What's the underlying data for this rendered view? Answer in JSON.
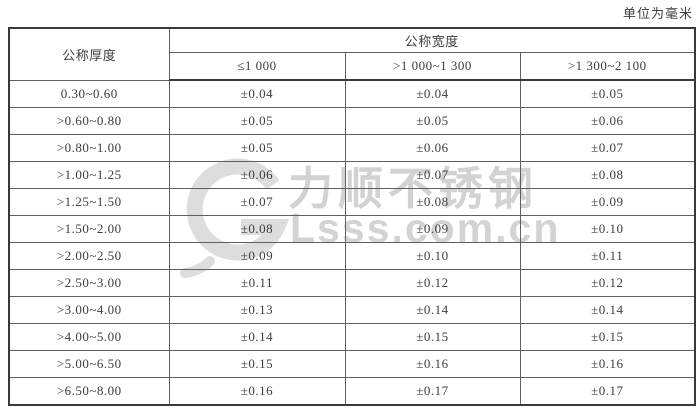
{
  "page": {
    "unit_note": "单位为毫米"
  },
  "table": {
    "thickness_header": "公称厚度",
    "width_group_header": "公称宽度",
    "width_col_headers": [
      "≤1 000",
      ">1 000~1 300",
      ">1 300~2 100"
    ],
    "rows": [
      {
        "thickness": "0.30~0.60",
        "tolerances": [
          "±0.04",
          "±0.04",
          "±0.05"
        ]
      },
      {
        "thickness": ">0.60~0.80",
        "tolerances": [
          "±0.05",
          "±0.05",
          "±0.06"
        ]
      },
      {
        "thickness": ">0.80~1.00",
        "tolerances": [
          "±0.05",
          "±0.06",
          "±0.07"
        ]
      },
      {
        "thickness": ">1.00~1.25",
        "tolerances": [
          "±0.06",
          "±0.07",
          "±0.08"
        ]
      },
      {
        "thickness": ">1.25~1.50",
        "tolerances": [
          "±0.07",
          "±0.08",
          "±0.09"
        ]
      },
      {
        "thickness": ">1.50~2.00",
        "tolerances": [
          "±0.08",
          "±0.09",
          "±0.10"
        ]
      },
      {
        "thickness": ">2.00~2.50",
        "tolerances": [
          "±0.09",
          "±0.10",
          "±0.11"
        ]
      },
      {
        "thickness": ">2.50~3.00",
        "tolerances": [
          "±0.11",
          "±0.12",
          "±0.12"
        ]
      },
      {
        "thickness": ">3.00~4.00",
        "tolerances": [
          "±0.13",
          "±0.14",
          "±0.14"
        ]
      },
      {
        "thickness": ">4.00~5.00",
        "tolerances": [
          "±0.14",
          "±0.15",
          "±0.15"
        ]
      },
      {
        "thickness": ">5.00~6.50",
        "tolerances": [
          "±0.15",
          "±0.16",
          "±0.16"
        ]
      },
      {
        "thickness": ">6.50~8.00",
        "tolerances": [
          "±0.16",
          "±0.17",
          "±0.17"
        ]
      }
    ]
  },
  "watermark": {
    "brand": "力顺不锈钢",
    "site": "Lsss.com.cn",
    "logo_icon": "g-swoosh-logo"
  },
  "colors": {
    "background": "#ffffff",
    "border_dark": "#3a3a3a",
    "border_light": "#5f5f5f",
    "text": "#3d3d3d",
    "watermark_gray": "#cccccc"
  }
}
